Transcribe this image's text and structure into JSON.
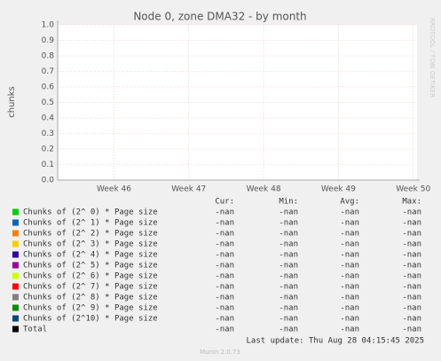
{
  "chart_data": {
    "type": "line",
    "title": "Node 0, zone DMA32 - by month",
    "y_label": "chunks",
    "side_text": "RRDTOOL / TOBI OETIKER",
    "categories": [
      "Week 46",
      "Week 47",
      "Week 48",
      "Week 49",
      "Week 50"
    ],
    "ylim": [
      0,
      1
    ],
    "yticks": [
      {
        "value": 0,
        "label": "0.0"
      },
      {
        "value": 0.1,
        "label": "0.1"
      },
      {
        "value": 0.2,
        "label": "0.2"
      },
      {
        "value": 0.3,
        "label": "0.3"
      },
      {
        "value": 0.4,
        "label": "0.4"
      },
      {
        "value": 0.5,
        "label": "0.5"
      },
      {
        "value": 0.6,
        "label": "0.6"
      },
      {
        "value": 0.7,
        "label": "0.7"
      },
      {
        "value": 0.8,
        "label": "0.8"
      },
      {
        "value": 0.9,
        "label": "0.9"
      },
      {
        "value": 1,
        "label": "1.0"
      }
    ],
    "grid": true,
    "legend_headers": [
      "Cur:",
      "Min:",
      "Avg:",
      "Max:"
    ],
    "series": [
      {
        "name": "Chunks of (2^ 0) * Page size",
        "color": "#00cc00",
        "stats": [
          "-nan",
          "-nan",
          "-nan",
          "-nan"
        ]
      },
      {
        "name": "Chunks of (2^ 1) * Page size",
        "color": "#0066b3",
        "stats": [
          "-nan",
          "-nan",
          "-nan",
          "-nan"
        ]
      },
      {
        "name": "Chunks of (2^ 2) * Page size",
        "color": "#ff8000",
        "stats": [
          "-nan",
          "-nan",
          "-nan",
          "-nan"
        ]
      },
      {
        "name": "Chunks of (2^ 3) * Page size",
        "color": "#ffcc00",
        "stats": [
          "-nan",
          "-nan",
          "-nan",
          "-nan"
        ]
      },
      {
        "name": "Chunks of (2^ 4) * Page size",
        "color": "#330099",
        "stats": [
          "-nan",
          "-nan",
          "-nan",
          "-nan"
        ]
      },
      {
        "name": "Chunks of (2^ 5) * Page size",
        "color": "#990099",
        "stats": [
          "-nan",
          "-nan",
          "-nan",
          "-nan"
        ]
      },
      {
        "name": "Chunks of (2^ 6) * Page size",
        "color": "#ccff00",
        "stats": [
          "-nan",
          "-nan",
          "-nan",
          "-nan"
        ]
      },
      {
        "name": "Chunks of (2^ 7) * Page size",
        "color": "#ff0000",
        "stats": [
          "-nan",
          "-nan",
          "-nan",
          "-nan"
        ]
      },
      {
        "name": "Chunks of (2^ 8) * Page size",
        "color": "#808080",
        "stats": [
          "-nan",
          "-nan",
          "-nan",
          "-nan"
        ]
      },
      {
        "name": "Chunks of (2^ 9) * Page size",
        "color": "#008f00",
        "stats": [
          "-nan",
          "-nan",
          "-nan",
          "-nan"
        ]
      },
      {
        "name": "Chunks of (2^10) * Page size",
        "color": "#00487d",
        "stats": [
          "-nan",
          "-nan",
          "-nan",
          "-nan"
        ]
      },
      {
        "name": "Total",
        "color": "#000000",
        "stats": [
          "-nan",
          "-nan",
          "-nan",
          "-nan"
        ]
      }
    ],
    "last_update": "Last update: Thu Aug 28 04:15:45 2025",
    "footer": "Munin 2.0.73"
  }
}
